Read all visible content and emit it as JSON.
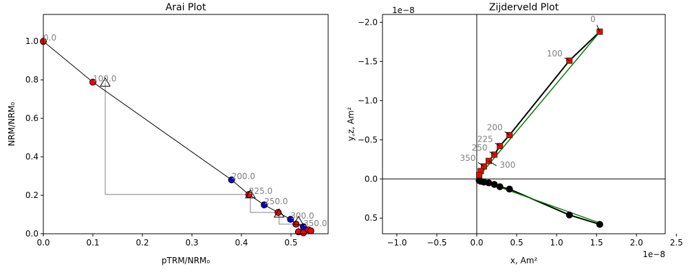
{
  "chart_data": [
    {
      "type": "arai",
      "title": "Arai Plot",
      "xlabel": "pTRM/NRM₀",
      "ylabel": "NRM/NRM₀",
      "xlim": [
        0,
        0.575
      ],
      "ylim": [
        0,
        1.14
      ],
      "xticks": [
        {
          "value": 0,
          "label": "0.0"
        },
        0.1,
        0.2,
        0.3,
        0.4,
        0.5
      ],
      "yticks": [
        {
          "value": 0,
          "label": "0.0"
        },
        0.2,
        0.4,
        0.6,
        0.8,
        {
          "value": 1,
          "label": "1.0"
        }
      ],
      "x": [
        0,
        0.1,
        0.38,
        0.415,
        0.446,
        0.474,
        0.499,
        0.51,
        0.525,
        0.535,
        0.515,
        0.525,
        0.54
      ],
      "y": [
        1.0,
        0.788,
        0.28,
        0.204,
        0.15,
        0.111,
        0.075,
        0.05,
        0.036,
        0.02,
        0.01,
        0.005,
        0.015
      ],
      "colors": [
        "#ff0000",
        "#ff0000",
        "#0000cd",
        "#ff0000",
        "#0000cd",
        "#ff0000",
        "#0000cd",
        "#ff0000",
        "#0000cd",
        "#ff0000",
        "#ff0000",
        "#ff0000",
        "#ff0000"
      ],
      "point_labels": [
        "0.0",
        "100.0",
        "200.0",
        "225.0",
        "250.0",
        null,
        "300.0",
        null,
        "350.0",
        null,
        null,
        null,
        null
      ],
      "checks": {
        "x": [
          0.125,
          0.418,
          0.476,
          0.515
        ],
        "y": [
          0.785,
          0.204,
          0.104,
          0.065
        ]
      }
    },
    {
      "type": "zijderveld",
      "title": "Zijderveld Plot",
      "xlabel": "x, Am²",
      "ylabel": "y,z, Am²",
      "offset_x": "1e−8",
      "offset_y": "1e−8",
      "xlim": [
        -1.18,
        2.36
      ],
      "ylim": [
        -2.1,
        0.7
      ],
      "xticks": [
        {
          "value": -1,
          "label": "−1.0"
        },
        {
          "value": -0.5,
          "label": "−0.5"
        },
        {
          "value": 0,
          "label": "0.0"
        },
        0.5,
        {
          "value": 1,
          "label": "1.0"
        },
        1.5,
        {
          "value": 2,
          "label": "2.0"
        },
        2.5
      ],
      "yticks": [
        {
          "value": -2,
          "label": "−2.0"
        },
        {
          "value": -1.5,
          "label": "−1.5"
        },
        {
          "value": -1,
          "label": "−1.0"
        },
        {
          "value": -0.5,
          "label": "−0.5"
        },
        {
          "value": 0,
          "label": "0.0"
        },
        0.5
      ],
      "x": [
        1.54,
        1.16,
        0.41,
        0.29,
        0.22,
        0.15,
        0.09,
        0.05,
        0.03
      ],
      "y": [
        -1.88,
        -1.51,
        -0.56,
        -0.42,
        -0.31,
        -0.23,
        -0.16,
        -0.1,
        -0.05
      ],
      "z": [
        0.58,
        0.46,
        0.13,
        0.1,
        0.07,
        0.05,
        0.04,
        0.03,
        0.02
      ],
      "point_labels": [
        "0",
        "100",
        "200",
        "225",
        "250",
        "300",
        "350",
        null,
        null
      ],
      "fit": {
        "color": "#008000",
        "x": [
          1.56,
          0
        ],
        "y": [
          -1.9,
          0
        ],
        "z": [
          0.57,
          0
        ]
      }
    }
  ]
}
